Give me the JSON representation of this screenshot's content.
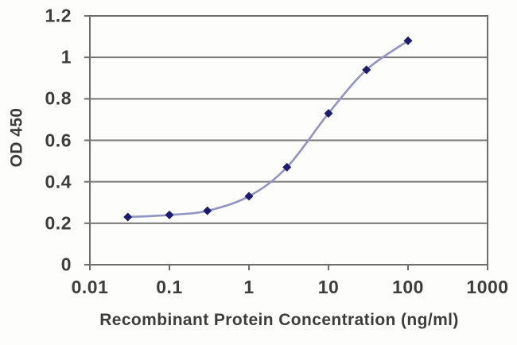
{
  "chart_data": {
    "type": "line",
    "title": "",
    "xlabel": "Recombinant Protein Concentration (ng/ml)",
    "ylabel": "OD 450",
    "x_scale": "log",
    "xlim": [
      0.01,
      1000
    ],
    "ylim": [
      0,
      1.2
    ],
    "x_ticks": [
      "0.01",
      "0.1",
      "1",
      "10",
      "100",
      "1000"
    ],
    "x_tick_values": [
      0.01,
      0.1,
      1,
      10,
      100,
      1000
    ],
    "y_ticks": [
      "0",
      "0.2",
      "0.4",
      "0.6",
      "0.8",
      "1",
      "1.2"
    ],
    "y_tick_values": [
      0,
      0.2,
      0.4,
      0.6,
      0.8,
      1,
      1.2
    ],
    "grid": "horizontal",
    "legend": "none",
    "series": [
      {
        "name": "OD 450",
        "marker": "diamond",
        "smooth": true,
        "x": [
          0.03,
          0.1,
          0.3,
          1,
          3,
          10,
          30,
          100
        ],
        "y": [
          0.23,
          0.24,
          0.26,
          0.33,
          0.47,
          0.73,
          0.94,
          1.08
        ]
      }
    ],
    "colors": {
      "line": "#9193c4",
      "marker": "#1c1c6e",
      "grid": "#787878",
      "axis": "#6e6e6e",
      "text": "#3d3d3d",
      "background": "#fdfdfc"
    }
  }
}
